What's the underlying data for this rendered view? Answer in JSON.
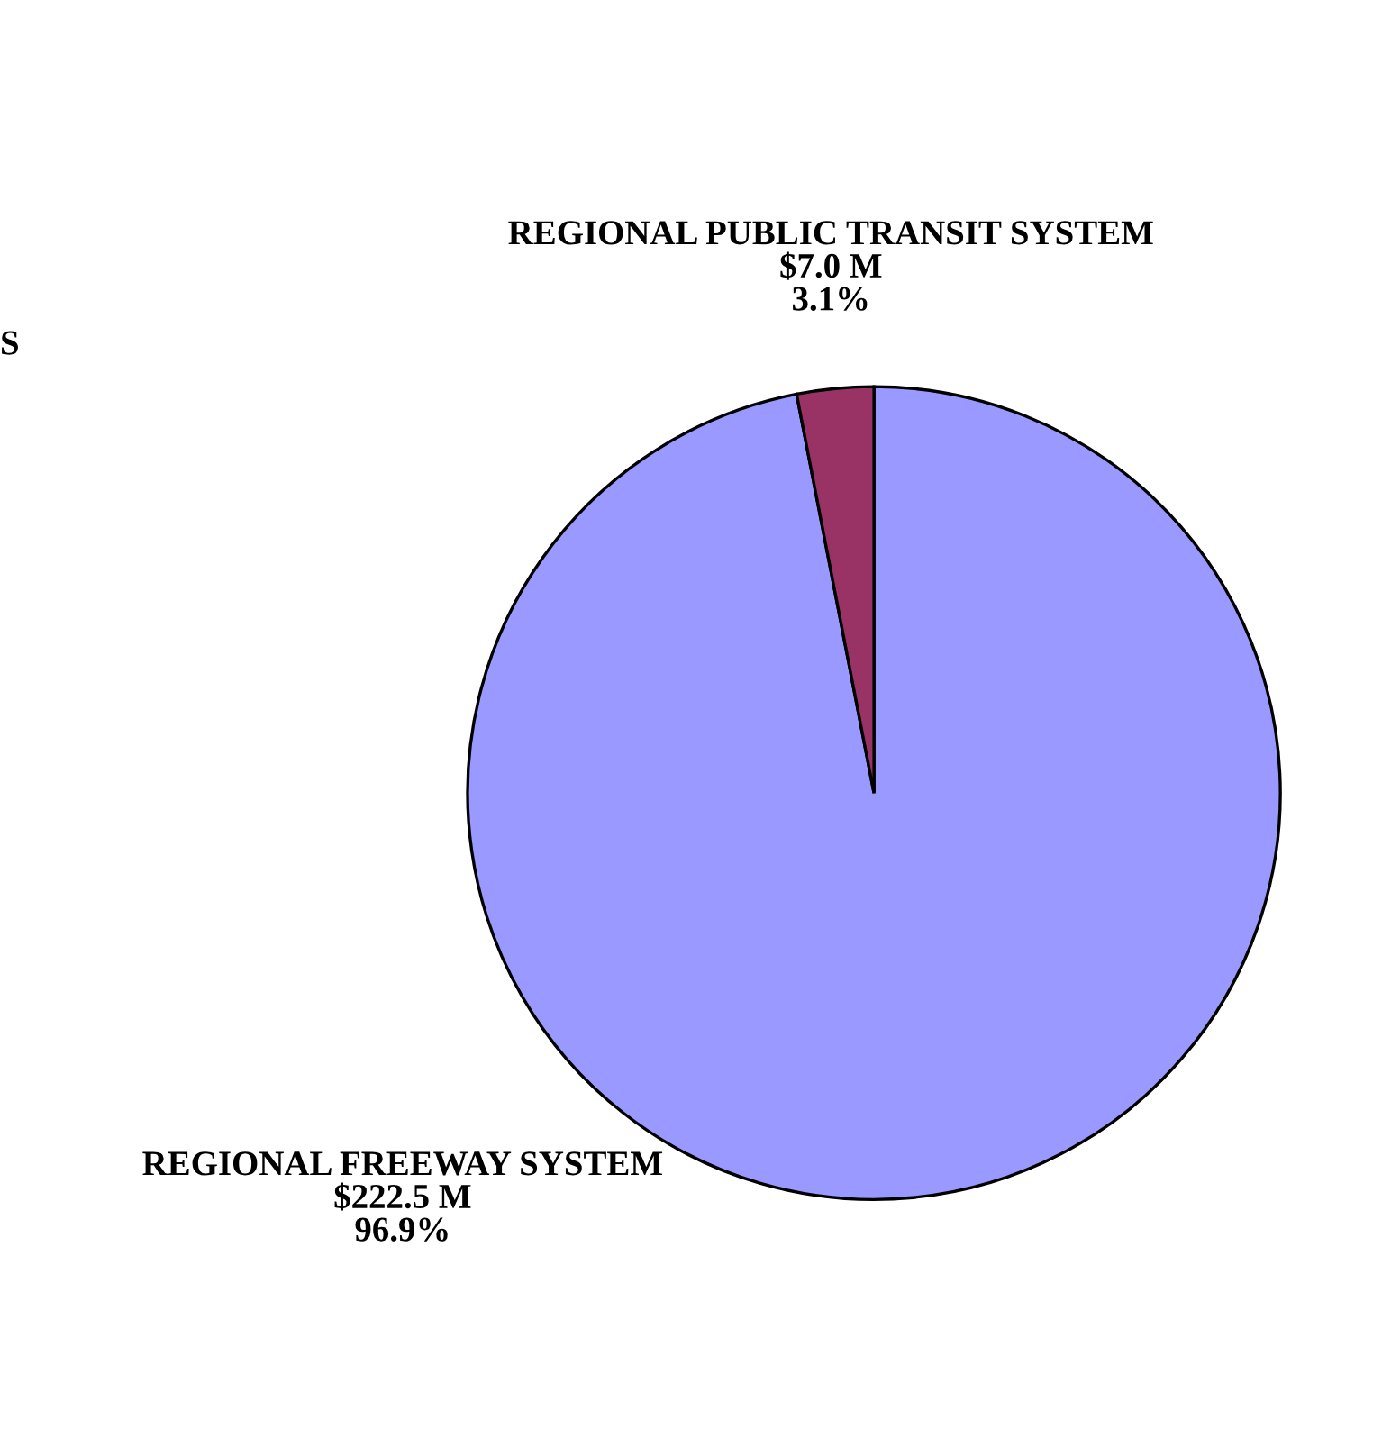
{
  "chart_data": {
    "type": "pie",
    "categories": [
      "REGIONAL FREEWAY SYSTEM",
      "REGIONAL PUBLIC TRANSIT SYSTEM"
    ],
    "values": [
      222.5,
      7.0
    ],
    "colors": [
      "#9999ff",
      "#993366"
    ],
    "value_labels": [
      "$222.5 M\n96.9%",
      "$7.0 M\n3.1%"
    ],
    "annotations": [
      "S"
    ],
    "legend": false
  }
}
